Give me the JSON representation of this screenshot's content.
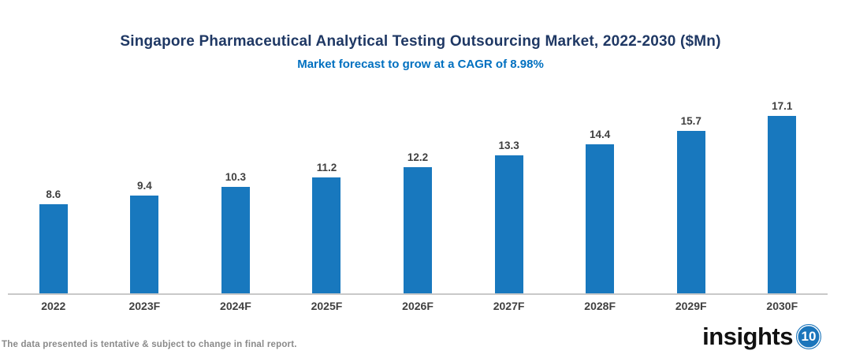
{
  "header": {
    "title": "Singapore Pharmaceutical Analytical Testing Outsourcing Market, 2022-2030 ($Mn)",
    "subtitle": "Market forecast to grow at a CAGR of 8.98%"
  },
  "chart_data": {
    "type": "bar",
    "title": "Singapore Pharmaceutical Analytical Testing Outsourcing Market, 2022-2030 ($Mn)",
    "subtitle": "Market forecast to grow at a CAGR of 8.98%",
    "categories": [
      "2022",
      "2023F",
      "2024F",
      "2025F",
      "2026F",
      "2027F",
      "2028F",
      "2029F",
      "2030F"
    ],
    "values": [
      8.6,
      9.4,
      10.3,
      11.2,
      12.2,
      13.3,
      14.4,
      15.7,
      17.1
    ],
    "xlabel": "",
    "ylabel": "",
    "ylim": [
      0,
      19.3
    ],
    "grid": false,
    "legend": "none",
    "data_labels": true,
    "cagr": "8.98%"
  },
  "footer": {
    "disclaimer": "The data presented is tentative & subject to change in final report.",
    "logo_text": "insights",
    "logo_number": "10"
  },
  "colors": {
    "title": "#1F3864",
    "subtitle": "#0070C0",
    "bar": "#1878BE",
    "value_label": "#404040",
    "axis_line": "#C9C9C9",
    "x_label": "#404040",
    "disclaimer": "#8A8A8A",
    "logo_text": "#111111",
    "logo_circle": "#1B75BB"
  }
}
